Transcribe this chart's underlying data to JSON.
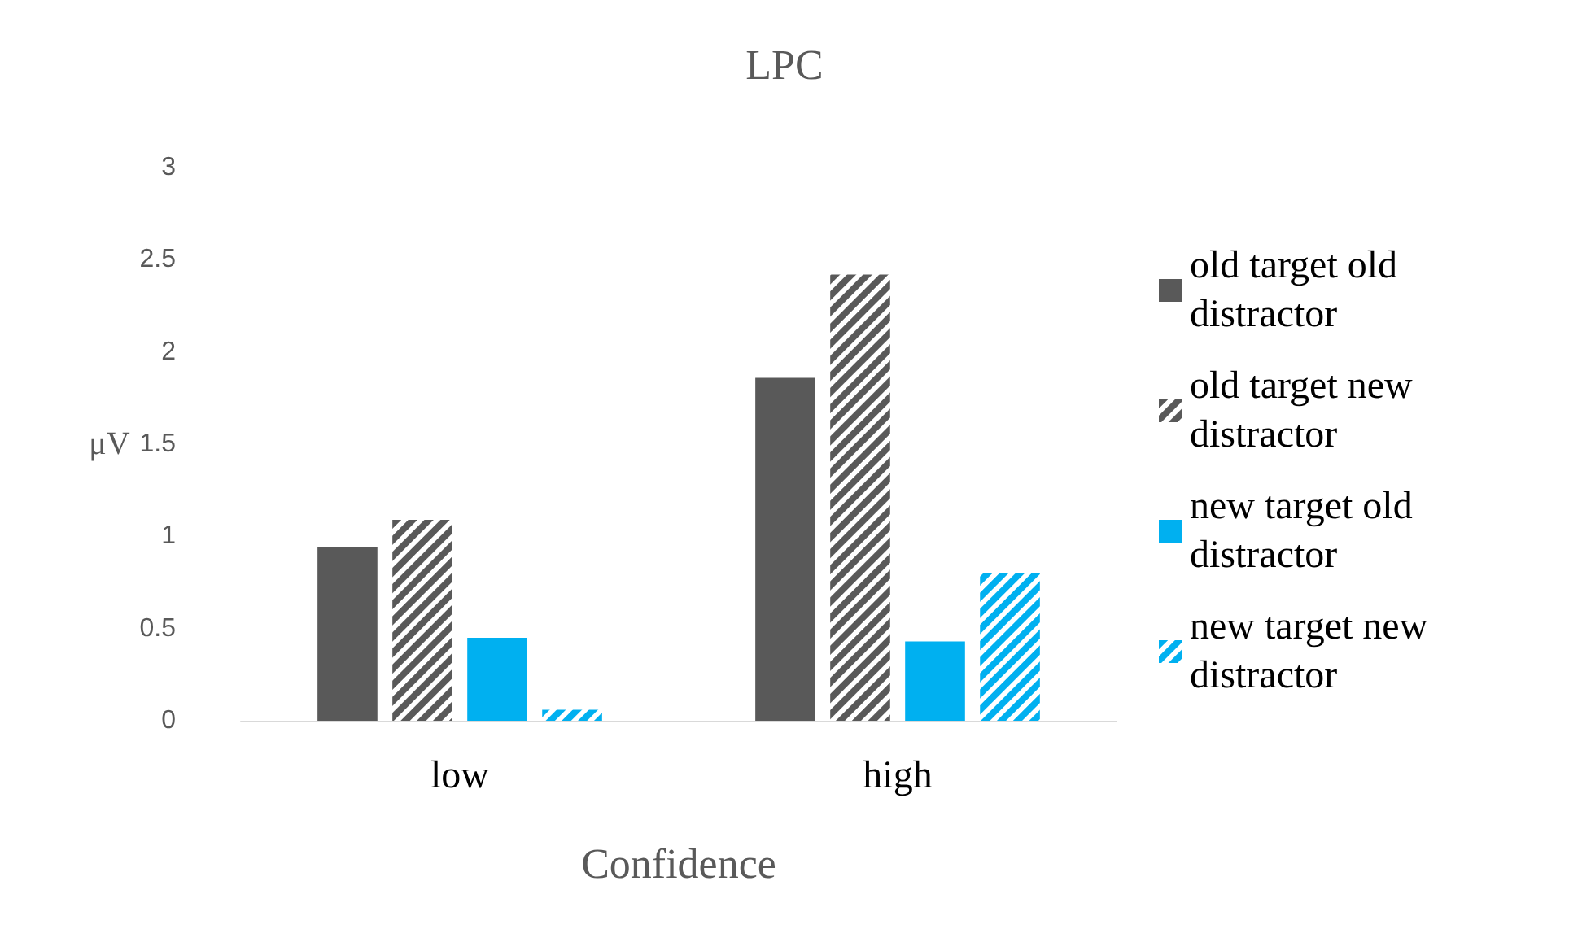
{
  "chart_data": {
    "type": "bar",
    "title": "LPC",
    "xlabel": "Confidence",
    "ylabel": "μV",
    "categories": [
      "low",
      "high"
    ],
    "series": [
      {
        "name": "old target old distractor",
        "color": "#595959",
        "values": [
          0.94,
          1.86
        ]
      },
      {
        "name": "old target new distractor",
        "color": "#595959",
        "values": [
          1.09,
          2.42
        ]
      },
      {
        "name": "new target old distractor",
        "color": "#00b0f0",
        "values": [
          0.45,
          0.43
        ]
      },
      {
        "name": "new target new distractor",
        "color": "#00b0f0",
        "values": [
          0.06,
          0.8
        ]
      }
    ],
    "ylim": [
      0,
      3
    ],
    "yticks": [
      0,
      0.5,
      1,
      1.5,
      2,
      2.5,
      3
    ],
    "grid": false,
    "legend": "right"
  }
}
